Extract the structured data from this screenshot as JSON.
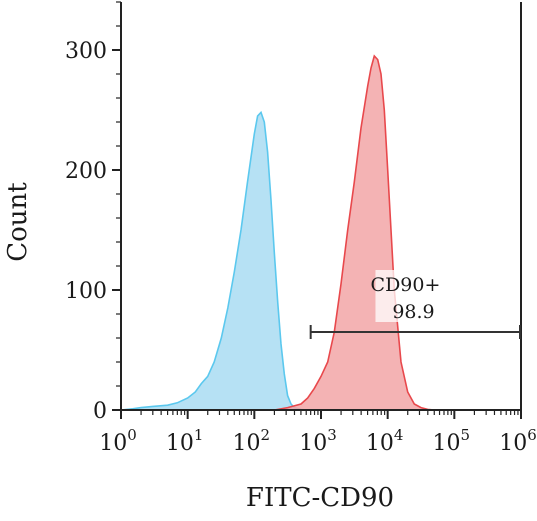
{
  "chart_data": {
    "type": "area",
    "xlabel": "FITC-CD90",
    "ylabel": "Count",
    "xscale": "log10",
    "xlim": [
      1,
      1000000
    ],
    "ylim": [
      0,
      340
    ],
    "grid": false,
    "x_ticks": [
      {
        "base": "10",
        "exp": "0",
        "value": 1
      },
      {
        "base": "10",
        "exp": "1",
        "value": 10
      },
      {
        "base": "10",
        "exp": "2",
        "value": 100
      },
      {
        "base": "10",
        "exp": "3",
        "value": 1000
      },
      {
        "base": "10",
        "exp": "4",
        "value": 10000
      },
      {
        "base": "10",
        "exp": "5",
        "value": 100000
      },
      {
        "base": "10",
        "exp": "6",
        "value": 1000000
      }
    ],
    "y_ticks": [
      {
        "label": "0",
        "value": 0
      },
      {
        "label": "100",
        "value": 100
      },
      {
        "label": "200",
        "value": 200
      },
      {
        "label": "300",
        "value": 300
      }
    ],
    "series": [
      {
        "color": "#5bc8ee",
        "fill": "#a9dcf2",
        "x": [
          1,
          1.5,
          2,
          3,
          5,
          7,
          10,
          13,
          16,
          20,
          25,
          32,
          40,
          50,
          63,
          79,
          100,
          112,
          126,
          141,
          158,
          178,
          200,
          224,
          251,
          282,
          316,
          355,
          398,
          501,
          631,
          1000
        ],
        "y": [
          0,
          1,
          2,
          3,
          4,
          6,
          10,
          15,
          22,
          28,
          40,
          60,
          85,
          115,
          150,
          190,
          230,
          245,
          248,
          240,
          215,
          175,
          130,
          90,
          55,
          30,
          12,
          5,
          2,
          0.5,
          0,
          0
        ]
      },
      {
        "color": "#e8484c",
        "fill": "#f2a6a7",
        "x": [
          200,
          316,
          501,
          631,
          794,
          1000,
          1259,
          1585,
          1995,
          2512,
          3162,
          3981,
          5012,
          5623,
          6310,
          7079,
          7943,
          8913,
          10000,
          11220,
          12589,
          15849,
          19953,
          25119,
          31623,
          39811,
          50119
        ],
        "y": [
          0,
          2,
          5,
          10,
          18,
          28,
          40,
          65,
          105,
          150,
          190,
          235,
          270,
          285,
          295,
          292,
          280,
          250,
          200,
          150,
          100,
          40,
          15,
          5,
          2,
          0.5,
          0
        ]
      }
    ],
    "gate": {
      "label": "CD90+",
      "value": "98.9",
      "x_start": 700,
      "x_end": 1000000,
      "y": 65
    }
  }
}
